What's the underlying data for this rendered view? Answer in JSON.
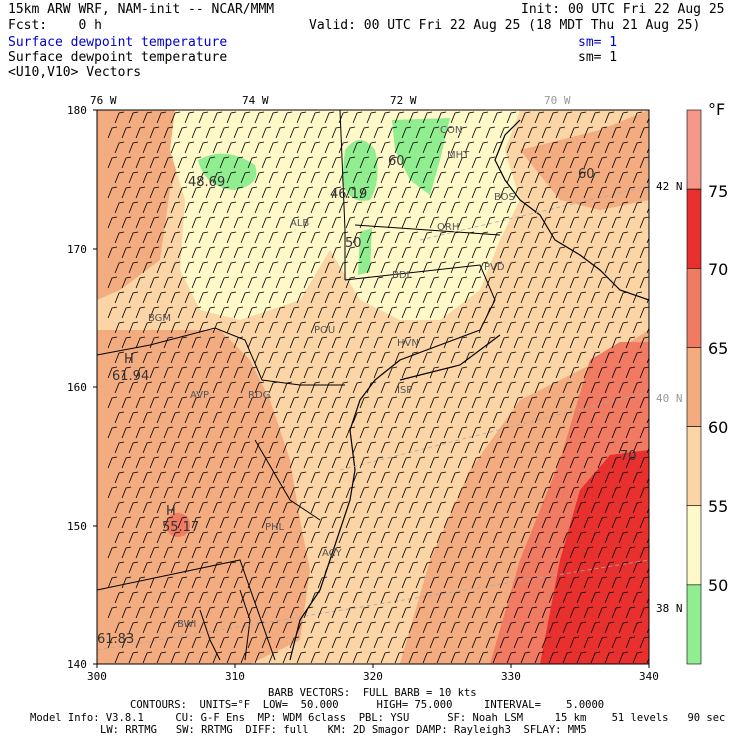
{
  "header": {
    "model_line": "15km ARW WRF, NAM-init -- NCAR/MMM",
    "init_line": "Init: 00 UTC Fri 22 Aug 25",
    "fcst_line": "Fcst:    0 h",
    "valid_line": "Valid: 00 UTC Fri 22 Aug 25 (18 MDT Thu 21 Aug 25)",
    "field1": "Surface dewpoint temperature",
    "field1_sm": "sm= 1",
    "field2": "Surface dewpoint temperature",
    "field2_sm": "sm= 1",
    "field3": "<U10,V10> Vectors"
  },
  "axes": {
    "lon_top": [
      "76 W",
      "74 W",
      "72 W",
      "70 W"
    ],
    "lat_right": [
      "42 N",
      "40 N",
      "38 N"
    ],
    "x_ticks": [
      "300",
      "310",
      "320",
      "330",
      "340"
    ],
    "y_ticks": [
      "180",
      "170",
      "160",
      "150",
      "140"
    ]
  },
  "colorbar": {
    "unit": "°F",
    "labels": [
      "75",
      "70",
      "65",
      "60",
      "55",
      "50"
    ],
    "colors": [
      "#f4998a",
      "#e8312e",
      "#f07a62",
      "#f3ac80",
      "#fbd5a6",
      "#fff8c8",
      "#90ee90"
    ]
  },
  "map_labels": {
    "lows": [
      "48.69",
      "46.19",
      "61.83"
    ],
    "highs": [
      "61.94",
      "55.17"
    ],
    "H": "H",
    "contours": [
      "60",
      "50",
      "50",
      "60",
      "70"
    ],
    "cities": [
      "CON",
      "MHT",
      "ALB",
      "ORH",
      "BDL",
      "BGM",
      "POU",
      "HVN",
      "AVP",
      "ISP",
      "RDG",
      "PHL",
      "ACY",
      "BWI",
      "PVD",
      "BOS"
    ]
  },
  "footer": {
    "barb_line": "BARB VECTORS:  FULL BARB = 10 kts",
    "contours_line": "CONTOURS:  UNITS=°F  LOW=  50.000      HIGH= 75.000     INTERVAL=    5.0000",
    "model_info_1": "Model Info: V3.8.1     CU: G-F Ens  MP: WDM 6class  PBL: YSU      SF: Noah LSM     15 km    51 levels   90 sec",
    "model_info_2": "LW: RRTMG   SW: RRTMG  DIFF: full   KM: 2D Smagor DAMP: Rayleigh3  SFLAY: MM5"
  }
}
